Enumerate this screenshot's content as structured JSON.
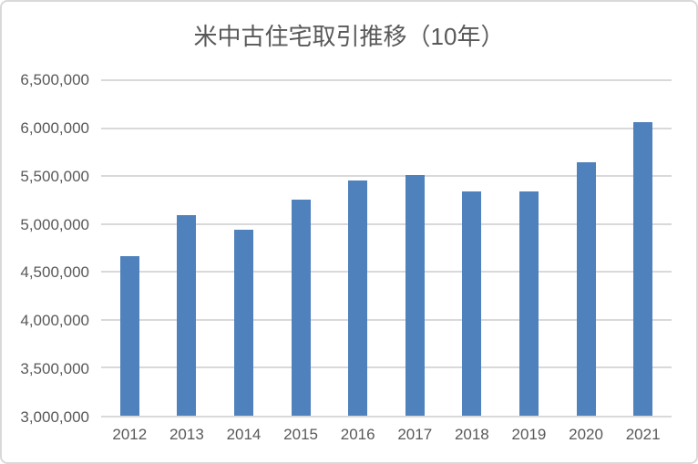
{
  "chart_data": {
    "type": "bar",
    "title": "米中古住宅取引推移（10年）",
    "categories": [
      "2012",
      "2013",
      "2014",
      "2015",
      "2016",
      "2017",
      "2018",
      "2019",
      "2020",
      "2021"
    ],
    "values": [
      4660000,
      5090000,
      4940000,
      5250000,
      5450000,
      5510000,
      5340000,
      5340000,
      5640000,
      6060000
    ],
    "xlabel": "",
    "ylabel": "",
    "ylim": [
      3000000,
      6500000
    ],
    "ytick_step": 500000,
    "ytick_labels": [
      "3,000,000",
      "3,500,000",
      "4,000,000",
      "4,500,000",
      "5,000,000",
      "5,500,000",
      "6,000,000",
      "6,500,000"
    ],
    "grid": true,
    "legend": "none",
    "bar_color": "#4F81BD"
  },
  "colors": {
    "bar": "#4F81BD",
    "gridline": "#D9D9D9",
    "axis_line": "#D9D9D9",
    "axis_text": "#595959",
    "title_text": "#595959",
    "chart_border": "#D9D9D9",
    "background": "#FFFFFF"
  }
}
